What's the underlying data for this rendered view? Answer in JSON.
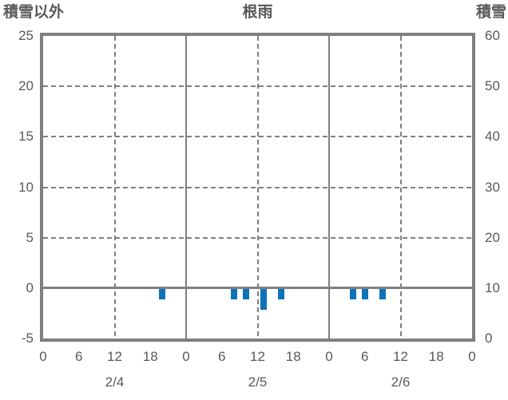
{
  "header": {
    "left_axis_label": "積雪以外",
    "title": "根雨",
    "right_axis_label": "積雪"
  },
  "colors": {
    "bar": "#0e72b8",
    "line": "#7f7f7f",
    "text": "#595959"
  },
  "chart_data": {
    "type": "bar",
    "title": "根雨",
    "left_axis": {
      "label": "積雪以外",
      "min": -5,
      "max": 25,
      "ticks": [
        25,
        20,
        15,
        10,
        5,
        0,
        -5
      ]
    },
    "right_axis": {
      "label": "積雪",
      "min": 0,
      "max": 60,
      "ticks": [
        60,
        50,
        40,
        30,
        20,
        10,
        0
      ]
    },
    "x_axis": {
      "hours_total": 72,
      "hour_tick_step": 6,
      "hour_tick_labels": [
        "0",
        "6",
        "12",
        "18",
        "0",
        "6",
        "12",
        "18",
        "0",
        "6",
        "12",
        "18",
        "0"
      ],
      "day_labels": [
        "2/4",
        "2/5",
        "2/6"
      ]
    },
    "gridlines": {
      "horizontal_dashed_values": [
        20,
        15,
        10,
        5
      ],
      "zero_line_value": 0,
      "vertical_solid_hours": [
        24,
        48
      ],
      "vertical_dashed_hours": [
        12,
        36,
        60
      ]
    },
    "series": [
      {
        "name": "積雪以外",
        "axis": "left",
        "bars": [
          {
            "day": "2/4",
            "hour": 20,
            "value": -1
          },
          {
            "day": "2/5",
            "hour": 8,
            "value": -1
          },
          {
            "day": "2/5",
            "hour": 10,
            "value": -1
          },
          {
            "day": "2/5",
            "hour": 13,
            "value": -2
          },
          {
            "day": "2/5",
            "hour": 16,
            "value": -1
          },
          {
            "day": "2/6",
            "hour": 4,
            "value": -1
          },
          {
            "day": "2/6",
            "hour": 6,
            "value": -1
          },
          {
            "day": "2/6",
            "hour": 9,
            "value": -1
          }
        ]
      }
    ]
  }
}
